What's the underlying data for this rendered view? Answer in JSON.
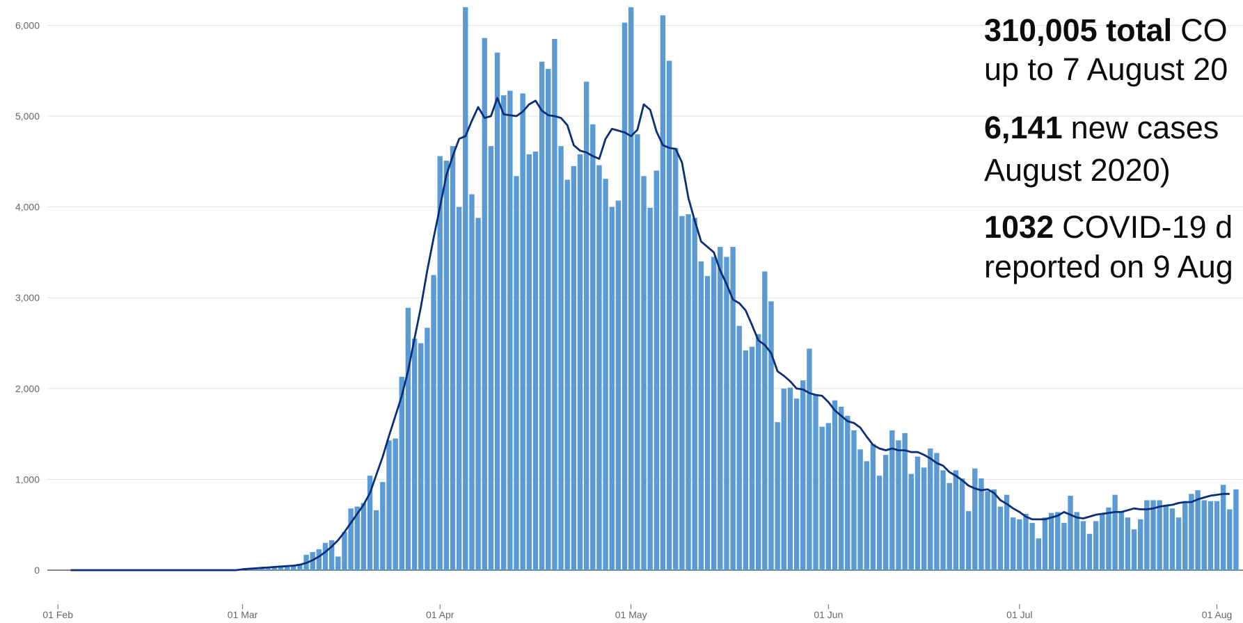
{
  "chart_data": {
    "type": "bar",
    "categories": [
      "01 Feb",
      null,
      null,
      null,
      null,
      null,
      null,
      null,
      null,
      null,
      null,
      null,
      null,
      null,
      null,
      null,
      null,
      null,
      null,
      null,
      null,
      null,
      null,
      null,
      null,
      null,
      null,
      null,
      null,
      "01 Mar",
      null,
      null,
      null,
      null,
      null,
      null,
      null,
      null,
      null,
      null,
      null,
      null,
      null,
      null,
      null,
      null,
      null,
      null,
      null,
      null,
      null,
      null,
      null,
      null,
      null,
      null,
      null,
      null,
      null,
      null,
      "01 Apr",
      null,
      null,
      null,
      null,
      null,
      null,
      null,
      null,
      null,
      null,
      null,
      null,
      null,
      null,
      null,
      null,
      null,
      null,
      null,
      null,
      null,
      null,
      null,
      null,
      null,
      null,
      null,
      null,
      null,
      "01 May",
      null,
      null,
      null,
      null,
      null,
      null,
      null,
      null,
      null,
      null,
      null,
      null,
      null,
      null,
      null,
      null,
      null,
      null,
      null,
      null,
      null,
      null,
      null,
      null,
      null,
      null,
      null,
      null,
      null,
      null,
      "01 Jun",
      null,
      null,
      null,
      null,
      null,
      null,
      null,
      null,
      null,
      null,
      null,
      null,
      null,
      null,
      null,
      null,
      null,
      null,
      null,
      null,
      null,
      null,
      null,
      null,
      null,
      null,
      null,
      null,
      null,
      "01 Jul",
      null,
      null,
      null,
      null,
      null,
      null,
      null,
      null,
      null,
      null,
      null,
      null,
      null,
      null,
      null,
      null,
      null,
      null,
      null,
      null,
      null,
      null,
      null,
      null,
      null,
      null,
      null,
      null,
      null,
      null,
      "01 Aug",
      null,
      null,
      null
    ],
    "series": [
      {
        "type": "bar",
        "color": "#5b9bd5",
        "values": [
          0,
          0,
          0,
          0,
          0,
          0,
          0,
          0,
          0,
          0,
          0,
          0,
          0,
          0,
          0,
          0,
          0,
          0,
          0,
          0,
          0,
          0,
          0,
          0,
          0,
          0,
          0,
          0,
          0,
          5,
          8,
          12,
          15,
          20,
          30,
          40,
          45,
          55,
          70,
          170,
          200,
          230,
          300,
          330,
          150,
          420,
          680,
          700,
          740,
          1040,
          660,
          970,
          1430,
          1450,
          2130,
          2890,
          2550,
          2500,
          2670,
          3250,
          4560,
          4510,
          4670,
          4000,
          6200,
          4140,
          3880,
          5860,
          4670,
          5700,
          5230,
          5280,
          4340,
          5250,
          4580,
          4610,
          5600,
          5520,
          5850,
          4670,
          4300,
          4450,
          4580,
          5380,
          4910,
          4460,
          4310,
          4000,
          4070,
          6030,
          6200,
          4800,
          4340,
          3990,
          4400,
          6110,
          5610,
          4650,
          3900,
          3920,
          3880,
          3400,
          3240,
          3450,
          3560,
          3450,
          3560,
          2690,
          2420,
          2460,
          2600,
          3290,
          2960,
          1630,
          2000,
          2010,
          1890,
          2090,
          2440,
          1940,
          1580,
          1620,
          1870,
          1800,
          1700,
          1540,
          1330,
          1200,
          1390,
          1040,
          1270,
          1540,
          1430,
          1510,
          1060,
          1250,
          1130,
          1340,
          1290,
          1100,
          960,
          1100,
          1010,
          650,
          1120,
          1010,
          870,
          890,
          700,
          830,
          580,
          560,
          620,
          520,
          350,
          580,
          630,
          640,
          520,
          820,
          640,
          540,
          400,
          540,
          620,
          690,
          830,
          650,
          580,
          450,
          560,
          770,
          770,
          770,
          720,
          680,
          580,
          760,
          840,
          880,
          770,
          760,
          760,
          940,
          670,
          890
        ]
      },
      {
        "type": "line",
        "color": "#0b2e7a",
        "values": [
          null,
          null,
          0,
          0,
          0,
          0,
          0,
          0,
          0,
          0,
          0,
          0,
          0,
          0,
          0,
          0,
          0,
          0,
          0,
          0,
          0,
          0,
          0,
          0,
          0,
          0,
          0,
          0,
          0,
          10,
          15,
          20,
          25,
          30,
          35,
          40,
          45,
          50,
          60,
          80,
          110,
          150,
          200,
          260,
          330,
          420,
          520,
          620,
          720,
          850,
          1050,
          1250,
          1480,
          1700,
          1920,
          2200,
          2550,
          2900,
          3300,
          3660,
          4000,
          4350,
          4560,
          4750,
          4780,
          4950,
          5100,
          4980,
          5000,
          5200,
          5020,
          5010,
          5000,
          5050,
          5130,
          5170,
          5060,
          5010,
          5000,
          4980,
          4900,
          4680,
          4620,
          4600,
          4560,
          4530,
          4750,
          4860,
          4840,
          4820,
          4780,
          4850,
          5130,
          5070,
          4830,
          4680,
          4650,
          4640,
          4490,
          4100,
          3850,
          3620,
          3560,
          3500,
          3300,
          3150,
          2980,
          2940,
          2860,
          2700,
          2530,
          2480,
          2390,
          2190,
          2140,
          2080,
          2000,
          1990,
          1950,
          1930,
          1920,
          1850,
          1760,
          1700,
          1640,
          1620,
          1570,
          1470,
          1380,
          1340,
          1320,
          1340,
          1320,
          1320,
          1300,
          1300,
          1270,
          1230,
          1180,
          1150,
          1080,
          1040,
          990,
          930,
          900,
          880,
          890,
          850,
          770,
          730,
          680,
          640,
          590,
          560,
          560,
          560,
          580,
          600,
          640,
          610,
          580,
          570,
          590,
          610,
          620,
          630,
          640,
          640,
          660,
          680,
          670,
          670,
          680,
          700,
          710,
          720,
          740,
          750,
          750,
          780,
          800,
          820,
          830,
          840,
          840,
          null
        ]
      }
    ],
    "ylim": [
      0,
      6250
    ],
    "yticks": [
      0,
      {
        "value": 1000,
        "label": "1,000"
      },
      {
        "value": 2000,
        "label": "2,000"
      },
      {
        "value": 3000,
        "label": "3,000"
      },
      {
        "value": 4000,
        "label": "4,000"
      },
      {
        "value": 5000,
        "label": "5,000"
      },
      {
        "value": 6000,
        "label": "6,000"
      }
    ],
    "grid": true,
    "annotations": [
      {
        "bold": "310,005 total",
        "text": "CO"
      },
      {
        "text": "up to 7 August 20"
      },
      {
        "bold": "6,141",
        "text": "new cases"
      },
      {
        "text": "August 2020)"
      },
      {
        "bold": "1032",
        "text": "COVID-19 d"
      },
      {
        "text": "reported on 9 Aug"
      }
    ]
  }
}
